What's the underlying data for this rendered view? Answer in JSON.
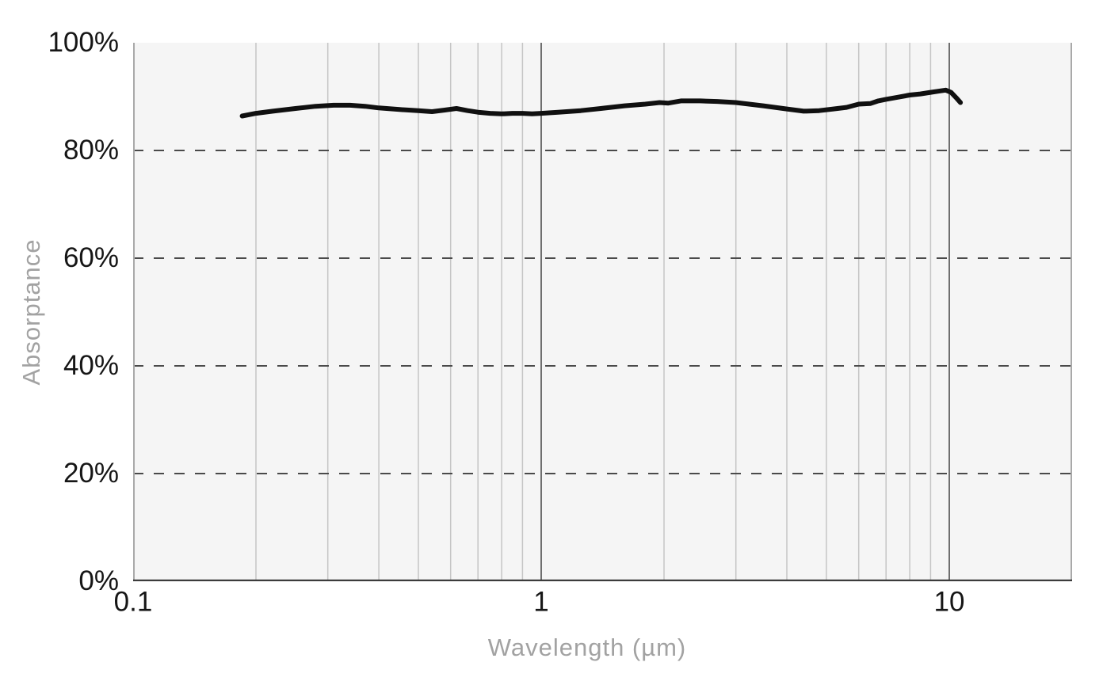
{
  "chart_data": {
    "type": "line",
    "title": "",
    "xlabel": "Wavelength (µm)",
    "ylabel": "Absorptance",
    "x_scale": "log",
    "x_range": [
      0.1,
      20
    ],
    "y_range": [
      0,
      100
    ],
    "x_ticks": [
      {
        "value": 0.1,
        "label": "0.1"
      },
      {
        "value": 1,
        "label": "1"
      },
      {
        "value": 10,
        "label": "10"
      }
    ],
    "y_ticks": [
      {
        "value": 0,
        "label": "0%"
      },
      {
        "value": 20,
        "label": "20%"
      },
      {
        "value": 40,
        "label": "40%"
      },
      {
        "value": 60,
        "label": "60%"
      },
      {
        "value": 80,
        "label": "80%"
      },
      {
        "value": 100,
        "label": "100%"
      }
    ],
    "x_minor_gridlines": [
      0.2,
      0.3,
      0.4,
      0.5,
      0.6,
      0.7,
      0.8,
      0.9,
      2,
      3,
      4,
      5,
      6,
      7,
      8,
      9
    ],
    "x_major_gridlines": [
      1,
      10
    ],
    "y_dashed_gridlines": [
      20,
      40,
      60,
      80
    ],
    "grid": true,
    "legend": "none",
    "series": [
      {
        "name": "Absorptance",
        "points": [
          [
            0.185,
            86.4
          ],
          [
            0.2,
            86.9
          ],
          [
            0.22,
            87.3
          ],
          [
            0.25,
            87.8
          ],
          [
            0.28,
            88.2
          ],
          [
            0.31,
            88.4
          ],
          [
            0.34,
            88.4
          ],
          [
            0.37,
            88.2
          ],
          [
            0.4,
            87.9
          ],
          [
            0.45,
            87.6
          ],
          [
            0.5,
            87.4
          ],
          [
            0.54,
            87.2
          ],
          [
            0.58,
            87.5
          ],
          [
            0.62,
            87.8
          ],
          [
            0.66,
            87.4
          ],
          [
            0.7,
            87.1
          ],
          [
            0.75,
            86.9
          ],
          [
            0.8,
            86.8
          ],
          [
            0.85,
            86.9
          ],
          [
            0.9,
            86.9
          ],
          [
            0.95,
            86.8
          ],
          [
            1.0,
            86.9
          ],
          [
            1.1,
            87.1
          ],
          [
            1.25,
            87.4
          ],
          [
            1.4,
            87.8
          ],
          [
            1.6,
            88.3
          ],
          [
            1.8,
            88.6
          ],
          [
            1.95,
            88.9
          ],
          [
            2.05,
            88.8
          ],
          [
            2.2,
            89.2
          ],
          [
            2.45,
            89.2
          ],
          [
            2.7,
            89.1
          ],
          [
            3.0,
            88.9
          ],
          [
            3.5,
            88.3
          ],
          [
            4.0,
            87.7
          ],
          [
            4.4,
            87.3
          ],
          [
            4.8,
            87.4
          ],
          [
            5.2,
            87.7
          ],
          [
            5.6,
            88.0
          ],
          [
            6.0,
            88.6
          ],
          [
            6.4,
            88.7
          ],
          [
            6.7,
            89.2
          ],
          [
            7.0,
            89.5
          ],
          [
            7.5,
            89.9
          ],
          [
            8.0,
            90.3
          ],
          [
            8.5,
            90.5
          ],
          [
            9.0,
            90.8
          ],
          [
            9.4,
            91.0
          ],
          [
            9.8,
            91.2
          ],
          [
            10.1,
            90.8
          ],
          [
            10.4,
            89.8
          ],
          [
            10.65,
            88.9
          ]
        ]
      }
    ],
    "colors": {
      "line": "#101010",
      "plot_background": "#f5f5f5",
      "page_background": "#ffffff",
      "minor_gridline": "#c5c5c5",
      "major_gridline": "#6f6f6f",
      "dashed_gridline": "#4a4a4a",
      "axis_bottom": "#3c3c3c",
      "axis_side": "#a9a9a9",
      "tick_label": "#161616",
      "axis_title": "#a2a2a2"
    }
  }
}
